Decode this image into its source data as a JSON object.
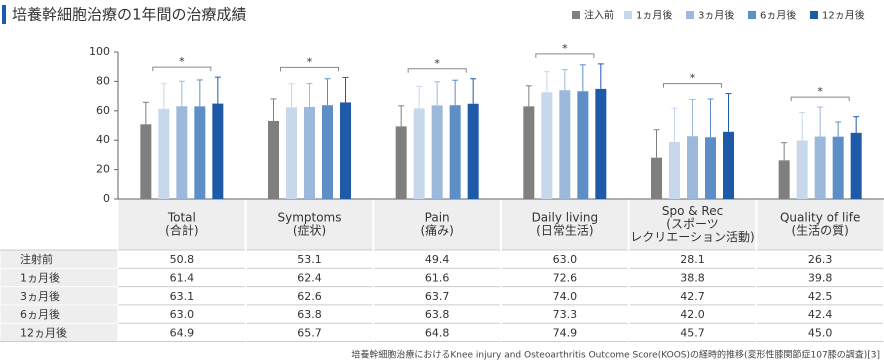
{
  "chart_data": {
    "type": "bar",
    "title": "培養幹細胞治療の1年間の治療成績",
    "categories": [
      "Total",
      "Symptoms",
      "Pain",
      "Daily living",
      "Spo & Rec",
      "Quality of life"
    ],
    "category_subtitles": [
      [
        "(合計)"
      ],
      [
        "(症状)"
      ],
      [
        "(痛み)"
      ],
      [
        "(日常生活)"
      ],
      [
        "(スポーツ",
        "レクリエーション活動)"
      ],
      [
        "(生活の質)"
      ]
    ],
    "significance": [
      "*",
      "*",
      "*",
      "*",
      "*",
      "*"
    ],
    "series": [
      {
        "name": "注入前",
        "row_label": "注射前",
        "color": "#7f7f7f",
        "values": [
          50.8,
          53.1,
          49.4,
          63.0,
          28.1,
          26.3
        ],
        "value_labels": [
          "50.8",
          "53.1",
          "49.4",
          "63.0",
          "28.1",
          "26.3"
        ],
        "errors": [
          15,
          15,
          14,
          14,
          19,
          12
        ]
      },
      {
        "name": "1ヵ月後",
        "row_label": "1ヵ月後",
        "color": "#c8d8ec",
        "values": [
          61.4,
          62.4,
          61.6,
          72.6,
          38.8,
          39.8
        ],
        "value_labels": [
          "61.4",
          "62.4",
          "61.6",
          "72.6",
          "38.8",
          "39.8"
        ],
        "errors": [
          17,
          16,
          15,
          14,
          23,
          19
        ]
      },
      {
        "name": "3ヵ月後",
        "row_label": "3ヵ月後",
        "color": "#9cb9db",
        "values": [
          63.1,
          62.6,
          63.7,
          74.0,
          42.7,
          42.5
        ],
        "value_labels": [
          "63.1",
          "62.6",
          "63.7",
          "74.0",
          "42.7",
          "42.5"
        ],
        "errors": [
          17,
          16,
          16,
          14,
          25,
          20
        ]
      },
      {
        "name": "6ヵ月後",
        "row_label": "6ヵ月後",
        "color": "#5e8ec8",
        "values": [
          63.0,
          63.8,
          63.8,
          73.3,
          42.0,
          42.4
        ],
        "value_labels": [
          "63.0",
          "63.8",
          "63.8",
          "73.3",
          "42.0",
          "42.4"
        ],
        "errors": [
          18,
          18,
          17,
          18,
          26,
          10
        ]
      },
      {
        "name": "12ヵ月後",
        "row_label": "12ヵ月後",
        "color": "#1f5aa8",
        "values": [
          64.9,
          65.7,
          64.8,
          74.9,
          45.7,
          45.0
        ],
        "value_labels": [
          "64.9",
          "65.7",
          "64.8",
          "74.9",
          "45.7",
          "45.0"
        ],
        "errors": [
          18,
          17,
          17,
          17,
          26,
          11
        ]
      }
    ],
    "ylim": [
      0,
      100
    ],
    "yticks": [
      0,
      20,
      40,
      60,
      80,
      100
    ],
    "grid": false,
    "legend": "top-right",
    "footnote": "培養幹細胞治療におけるKnee injury and Osteoarthritis Outcome Score(KOOS)の経時的推移(変形性膝関節症107膝の調査)[3]"
  }
}
